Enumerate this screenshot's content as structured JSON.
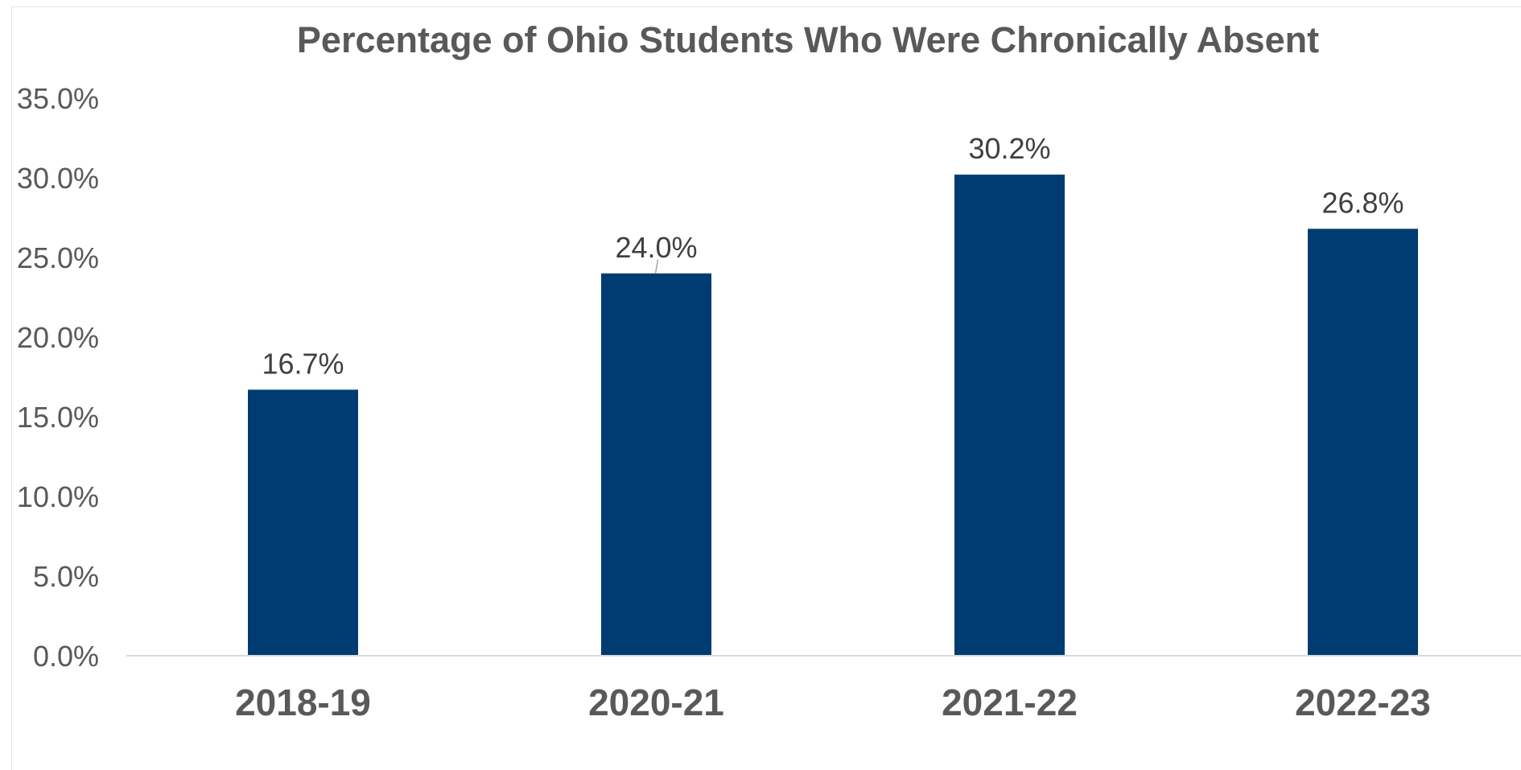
{
  "chart_data": {
    "type": "bar",
    "title": "Percentage of Ohio Students Who Were Chronically Absent",
    "xlabel": "",
    "ylabel": "",
    "categories": [
      "2018-19",
      "2020-21",
      "2021-22",
      "2022-23"
    ],
    "values": [
      16.7,
      24.0,
      30.2,
      26.8
    ],
    "data_labels": [
      "16.7%",
      "24.0%",
      "30.2%",
      "26.8%"
    ],
    "ylim": [
      0,
      35
    ],
    "y_ticks": [
      0,
      5,
      10,
      15,
      20,
      25,
      30,
      35
    ],
    "y_tick_labels": [
      "0.0%",
      "5.0%",
      "10.0%",
      "15.0%",
      "20.0%",
      "25.0%",
      "30.0%",
      "35.0%"
    ],
    "grid": false,
    "legend": "none",
    "bar_color": "#003C71"
  }
}
